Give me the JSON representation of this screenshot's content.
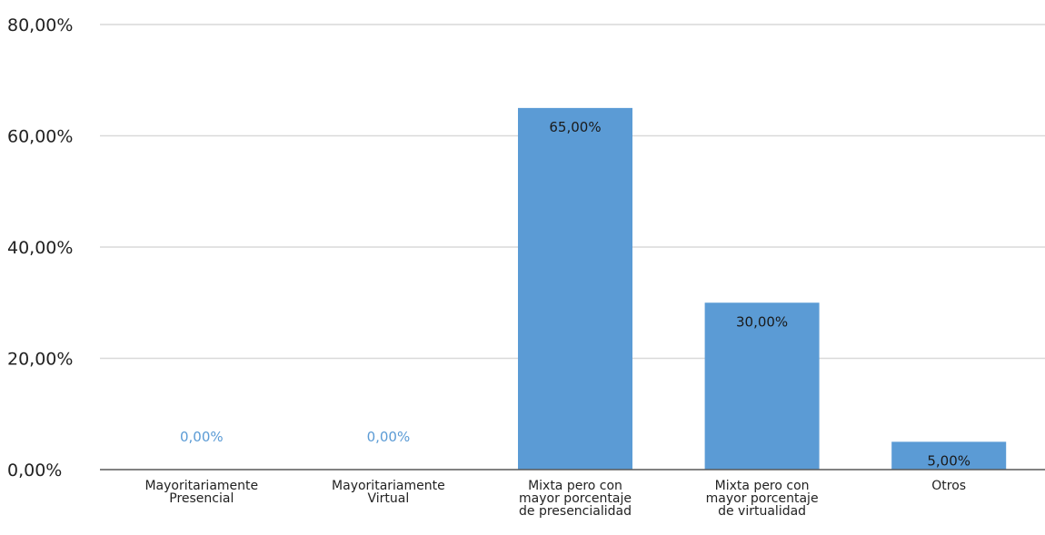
{
  "chart_data": {
    "type": "bar",
    "title": "",
    "xlabel": "",
    "ylabel": "",
    "categories": [
      [
        "Mayoritariamente",
        "Presencial"
      ],
      [
        "Mayoritariamente",
        "Virtual"
      ],
      [
        "Mixta pero con",
        "mayor porcentaje",
        "de presencialidad"
      ],
      [
        "Mixta pero con",
        "mayor porcentaje",
        "de virtualidad"
      ],
      [
        "Otros"
      ]
    ],
    "values": [
      0,
      0,
      65,
      30,
      5
    ],
    "data_labels": [
      "0,00%",
      "0,00%",
      "65,00%",
      "30,00%",
      "5,00%"
    ],
    "ylim": [
      0,
      80
    ],
    "y_ticks": [
      0,
      20,
      40,
      60,
      80
    ],
    "y_tick_labels": [
      "0,00%",
      "20,00%",
      "40,00%",
      "60,00%",
      "80,00%"
    ],
    "grid": true,
    "legend": "none",
    "colors": {
      "bar": "#5b9bd5",
      "label_inside": "#1a1a1a",
      "label_zero": "#5b9bd5",
      "grid": "#d9d9d9",
      "axis": "#595959"
    }
  }
}
